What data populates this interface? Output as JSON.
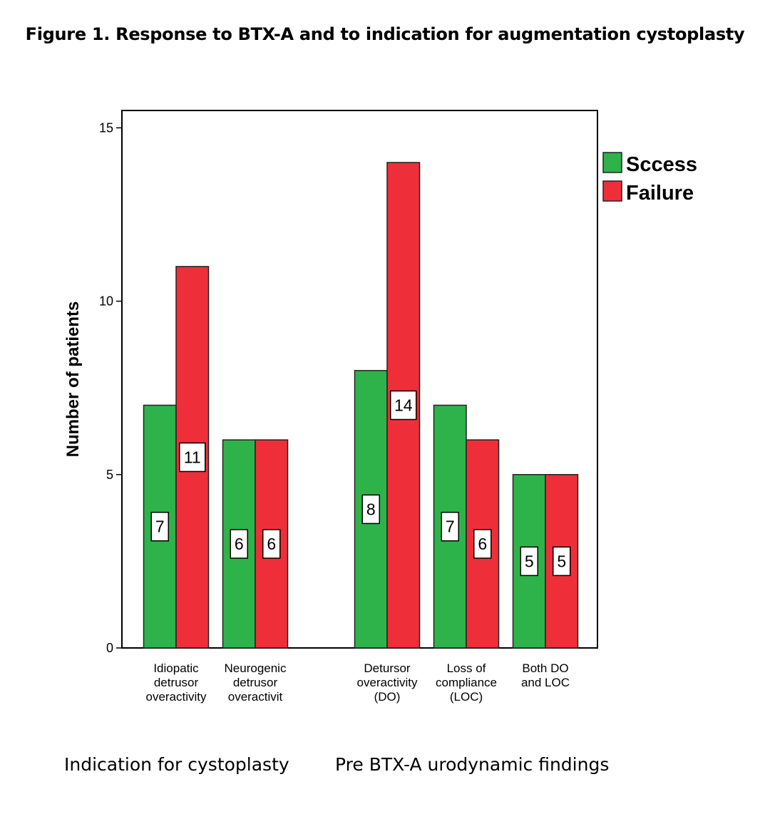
{
  "figure": {
    "title": "Figure 1. Response to BTX-A and to indication for augmentation cystoplasty",
    "group_captions": [
      "Indication for cystoplasty",
      "Pre BTX-A urodynamic findings"
    ]
  },
  "chart_data": {
    "type": "bar",
    "title": "Figure 1. Response to BTX-A and to indication for augmentation cystoplasty",
    "xlabel": "",
    "ylabel": "Number of patients",
    "ylim": [
      0,
      15.5
    ],
    "yticks": [
      0,
      5,
      10,
      15
    ],
    "grid": false,
    "legend_position": "top-right, outside plot",
    "groups": [
      {
        "name": "Indication for cystoplasty",
        "category_indices": [
          0,
          1
        ]
      },
      {
        "name": "Pre BTX-A urodynamic findings",
        "category_indices": [
          2,
          3,
          4
        ]
      }
    ],
    "categories": [
      [
        "Idiopatic",
        "detrusor",
        "overactivity"
      ],
      [
        "Neurogenic",
        "detrusor",
        "overactivit"
      ],
      [
        "Detursor",
        "overactivity",
        "(DO)"
      ],
      [
        "Loss of",
        "compliance",
        "(LOC)"
      ],
      [
        "Both DO",
        "and LOC"
      ]
    ],
    "series": [
      {
        "name": "Sccess",
        "color": "#2db34a",
        "values": [
          7,
          6,
          8,
          7,
          5
        ]
      },
      {
        "name": "Failure",
        "color": "#ee2f39",
        "values": [
          11,
          6,
          14,
          6,
          5
        ]
      }
    ]
  }
}
